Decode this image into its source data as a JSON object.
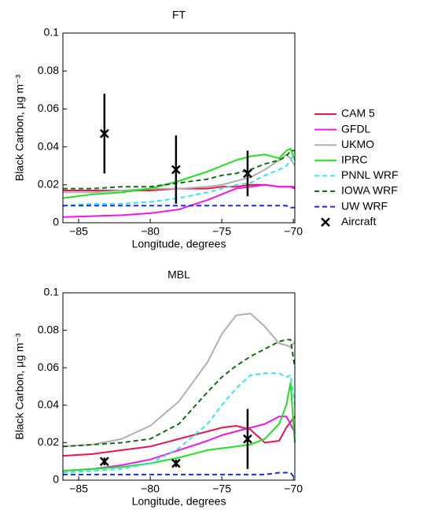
{
  "chart_data": [
    {
      "type": "line",
      "title": "FT",
      "xlabel": "Longitude, degrees",
      "ylabel": "Black Carbon, μg m⁻³",
      "xlim": [
        -86.1,
        -69.9
      ],
      "ylim": [
        0,
        0.1
      ],
      "xticks": [
        {
          "value": -85,
          "label": "−85"
        },
        {
          "value": -80,
          "label": "−80"
        },
        {
          "value": -75,
          "label": "−75"
        },
        {
          "value": -70,
          "label": "−70"
        }
      ],
      "yticks": [
        0,
        0.02,
        0.04,
        0.06,
        0.08,
        0.1
      ],
      "legend": "right",
      "x": [
        -86.1,
        -84,
        -82,
        -80,
        -78,
        -76,
        -75,
        -74,
        -73,
        -72,
        -71,
        -70.5,
        -70.2,
        -69.9
      ],
      "series": [
        {
          "name": "CAM 5",
          "color": "#e8174a",
          "dashed": false,
          "values": [
            0.017,
            0.017,
            0.017,
            0.017,
            0.018,
            0.018,
            0.019,
            0.019,
            0.02,
            0.02,
            0.019,
            0.019,
            0.019,
            0.018
          ]
        },
        {
          "name": "GFDL",
          "color": "#ee17ee",
          "dashed": false,
          "values": [
            0.003,
            0.0035,
            0.004,
            0.005,
            0.007,
            0.012,
            0.015,
            0.018,
            0.019,
            0.02,
            0.019,
            0.019,
            0.019,
            0.019
          ]
        },
        {
          "name": "UKMO",
          "color": "#b0b0b0",
          "dashed": false,
          "values": [
            0.016,
            0.016,
            0.017,
            0.018,
            0.018,
            0.019,
            0.02,
            0.022,
            0.024,
            0.028,
            0.033,
            0.036,
            0.034,
            0.03
          ]
        },
        {
          "name": "IPRC",
          "color": "#22e022",
          "dashed": false,
          "values": [
            0.013,
            0.015,
            0.016,
            0.018,
            0.022,
            0.027,
            0.03,
            0.033,
            0.035,
            0.036,
            0.034,
            0.038,
            0.039,
            0.033
          ]
        },
        {
          "name": "PNNL WRF",
          "color": "#33e6f0",
          "dashed": true,
          "values": [
            0.009,
            0.01,
            0.01,
            0.011,
            0.013,
            0.016,
            0.018,
            0.02,
            0.021,
            0.025,
            0.028,
            0.03,
            0.033,
            0.037
          ]
        },
        {
          "name": "IOWA WRF",
          "color": "#136b13",
          "dashed": true,
          "values": [
            0.018,
            0.018,
            0.019,
            0.019,
            0.021,
            0.023,
            0.025,
            0.026,
            0.028,
            0.031,
            0.033,
            0.035,
            0.038,
            0.038
          ]
        },
        {
          "name": "UW WRF",
          "color": "#1a2ee0",
          "dashed": true,
          "values": [
            0.009,
            0.009,
            0.009,
            0.009,
            0.009,
            0.009,
            0.009,
            0.009,
            0.009,
            0.009,
            0.009,
            0.009,
            0.008,
            0.008
          ]
        }
      ],
      "aircraft": {
        "name": "Aircraft",
        "color": "#000000",
        "x": [
          -83.2,
          -78.2,
          -73.2
        ],
        "values": [
          0.047,
          0.028,
          0.026
        ],
        "errors": [
          0.021,
          0.018,
          0.012
        ]
      }
    },
    {
      "type": "line",
      "title": "MBL",
      "xlabel": "Longitude, degrees",
      "ylabel": "Black Carbon, μg m⁻³",
      "xlim": [
        -86.1,
        -69.9
      ],
      "ylim": [
        0,
        0.1
      ],
      "xticks": [
        {
          "value": -85,
          "label": "−85"
        },
        {
          "value": -80,
          "label": "−80"
        },
        {
          "value": -75,
          "label": "−75"
        },
        {
          "value": -70,
          "label": "−70"
        }
      ],
      "yticks": [
        0,
        0.02,
        0.04,
        0.06,
        0.08,
        0.1
      ],
      "x": [
        -86.1,
        -84,
        -82,
        -80,
        -78,
        -76,
        -75,
        -74,
        -73,
        -72,
        -71,
        -70.5,
        -70.2,
        -69.9
      ],
      "series": [
        {
          "color": "#e8174a",
          "dashed": false,
          "values": [
            0.013,
            0.014,
            0.016,
            0.018,
            0.022,
            0.026,
            0.028,
            0.029,
            0.027,
            0.02,
            0.021,
            0.028,
            0.031,
            0.034
          ]
        },
        {
          "color": "#ee17ee",
          "dashed": false,
          "values": [
            0.005,
            0.006,
            0.008,
            0.011,
            0.016,
            0.021,
            0.024,
            0.026,
            0.028,
            0.03,
            0.034,
            0.034,
            0.03,
            0.025
          ]
        },
        {
          "color": "#b0b0b0",
          "dashed": false,
          "values": [
            0.018,
            0.019,
            0.022,
            0.029,
            0.042,
            0.063,
            0.078,
            0.088,
            0.089,
            0.082,
            0.073,
            0.072,
            0.071,
            0.074
          ]
        },
        {
          "color": "#22e022",
          "dashed": false,
          "values": [
            0.005,
            0.006,
            0.007,
            0.009,
            0.012,
            0.016,
            0.017,
            0.018,
            0.019,
            0.022,
            0.03,
            0.04,
            0.052,
            0.02
          ]
        },
        {
          "color": "#33e6f0",
          "dashed": true,
          "values": [
            0.004,
            0.005,
            0.006,
            0.009,
            0.017,
            0.03,
            0.04,
            0.049,
            0.056,
            0.057,
            0.057,
            0.055,
            0.056,
            0.04
          ]
        },
        {
          "color": "#136b13",
          "dashed": true,
          "values": [
            0.018,
            0.019,
            0.02,
            0.022,
            0.03,
            0.047,
            0.055,
            0.061,
            0.066,
            0.07,
            0.074,
            0.075,
            0.075,
            0.06
          ]
        },
        {
          "color": "#1a2ee0",
          "dashed": true,
          "values": [
            0.003,
            0.003,
            0.003,
            0.003,
            0.003,
            0.003,
            0.003,
            0.003,
            0.003,
            0.003,
            0.004,
            0.004,
            0.004,
            0.001
          ]
        }
      ],
      "aircraft": {
        "color": "#000000",
        "x": [
          -83.2,
          -78.2,
          -73.2
        ],
        "values": [
          0.01,
          0.009,
          0.022
        ],
        "errors": [
          0.002,
          0.002,
          0.016
        ]
      }
    }
  ]
}
